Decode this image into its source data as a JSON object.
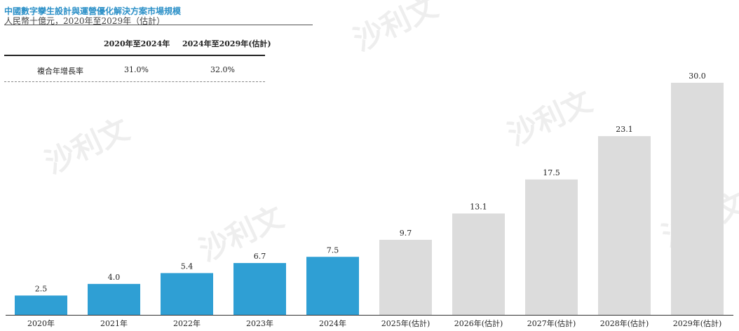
{
  "header": {
    "title": "中國數字孿生設計與運營優化解決方案市場規模",
    "subtitle": "人民幣十億元，2020年至2029年（估計）"
  },
  "cagr_table": {
    "headers": [
      "",
      "2020年至2024年",
      "2024年至2029年(估計)"
    ],
    "row_label": "複合年增長率",
    "values": [
      "31.0%",
      "32.0%"
    ]
  },
  "watermarks": [
    "沙利文",
    "沙利文",
    "沙利文",
    "沙利文",
    "沙利文"
  ],
  "colors": {
    "actual": "#2f9fd4",
    "forecast": "#dcdcdc",
    "title": "#2a8fc7"
  },
  "chart_data": {
    "type": "bar",
    "categories": [
      "2020年",
      "2021年",
      "2022年",
      "2023年",
      "2024年",
      "2025年(估計)",
      "2026年(估計)",
      "2027年(估計)",
      "2028年(估計)",
      "2029年(估計)"
    ],
    "values": [
      2.5,
      4.0,
      5.4,
      6.7,
      7.5,
      9.7,
      13.1,
      17.5,
      23.1,
      30.0
    ],
    "forecast": [
      false,
      false,
      false,
      false,
      false,
      true,
      true,
      true,
      true,
      true
    ],
    "title": "中國數字孿生設計與運營優化解決方案市場規模",
    "subtitle": "人民幣十億元，2020年至2029年（估計）",
    "xlabel": "",
    "ylabel": "",
    "ylim": [
      0,
      30
    ],
    "grid": false,
    "legend": "none"
  }
}
